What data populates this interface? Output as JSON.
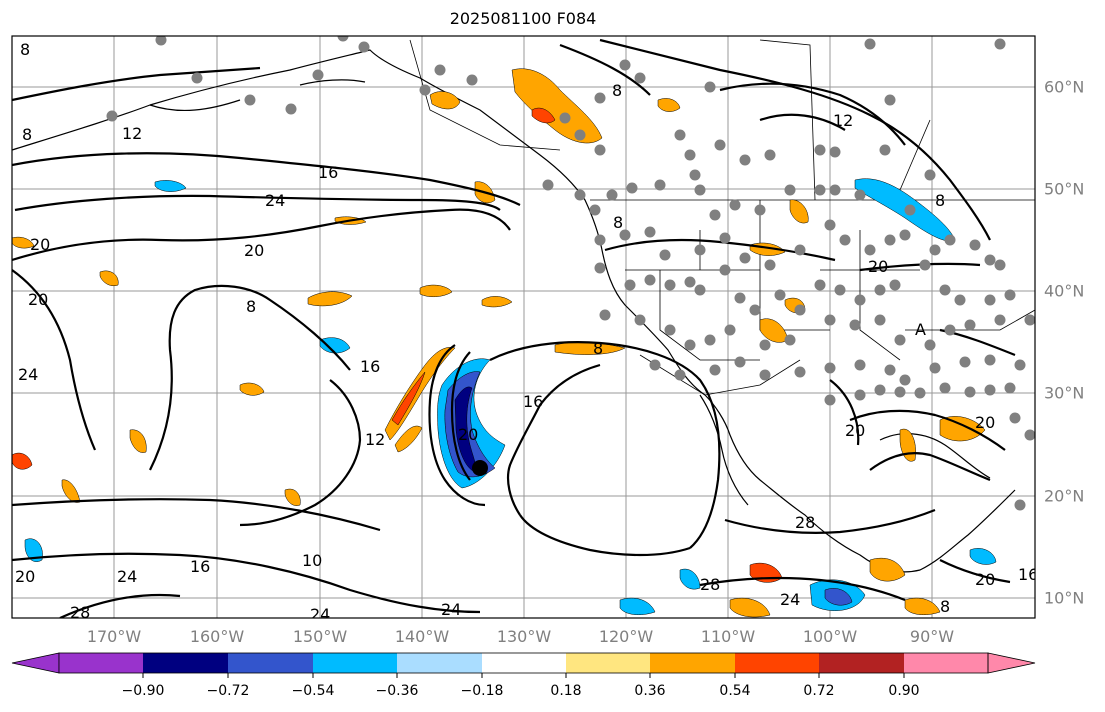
{
  "title": "2025081100 F084",
  "lon_labels": [
    "170°W",
    "160°W",
    "150°W",
    "140°W",
    "130°W",
    "120°W",
    "110°W",
    "100°W",
    "90°W"
  ],
  "lat_labels": [
    "60°N",
    "50°N",
    "40°N",
    "30°N",
    "20°N",
    "10°N"
  ],
  "contour_labels": [
    "8",
    "12",
    "16",
    "20",
    "24",
    "28",
    "10",
    "A"
  ],
  "colorbar": {
    "tick_labels": [
      "−0.90",
      "−0.72",
      "−0.54",
      "−0.36",
      "−0.18",
      "0.18",
      "0.36",
      "0.54",
      "0.72",
      "0.90"
    ],
    "colors": [
      "#9933cc",
      "#000080",
      "#3355cc",
      "#00bbff",
      "#aaddff",
      "#ffffff",
      "#ffe680",
      "#ffa500",
      "#ff4400",
      "#b22222",
      "#ff88aa"
    ]
  },
  "colors": {
    "contour": "#000000",
    "grid": "#999999",
    "station_marker": "#808080",
    "storm_center": "#000000"
  }
}
